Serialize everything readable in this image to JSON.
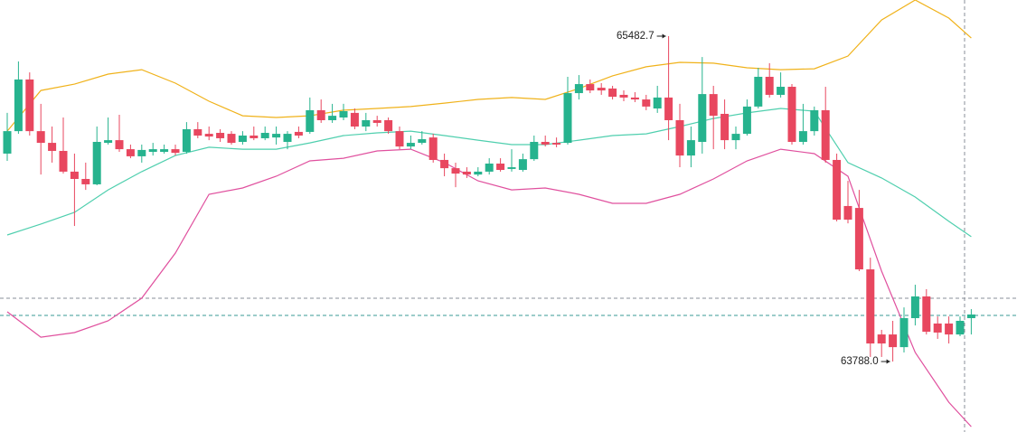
{
  "chart_data": {
    "type": "candlestick",
    "ylim": [
      63421,
      65671
    ],
    "up_color": "#26b38e",
    "down_color": "#e8475f",
    "max_label": "65482.7",
    "min_label": "63788.0",
    "open": [
      64871,
      64988,
      65257,
      64988,
      64927,
      64885,
      64777,
      64739,
      64711,
      64927,
      64941,
      64894,
      64857,
      64880,
      64880,
      64894,
      64880,
      64998,
      64974,
      64979,
      64974,
      64932,
      64965,
      64951,
      64955,
      64932,
      64984,
      64984,
      65097,
      65045,
      65059,
      65083,
      65012,
      65045,
      65045,
      64988,
      64908,
      64927,
      64955,
      64838,
      64795,
      64777,
      64762,
      64777,
      64819,
      64791,
      64786,
      64842,
      64932,
      64927,
      64927,
      65186,
      65233,
      65214,
      65210,
      65177,
      65163,
      65153,
      65106,
      65163,
      65045,
      64861,
      64932,
      65181,
      65078,
      64941,
      64974,
      65116,
      65271,
      65177,
      65219,
      64932,
      64988,
      65097,
      64838,
      64598,
      64588,
      64268,
      63929,
      63929,
      63863,
      64014,
      64127,
      63986,
      63986,
      63929,
      64014
    ],
    "high": [
      65083,
      65351,
      65294,
      65130,
      65012,
      65059,
      64871,
      64824,
      65012,
      65059,
      65073,
      64918,
      64918,
      64927,
      64918,
      64918,
      65035,
      65035,
      65012,
      64998,
      64988,
      64988,
      65012,
      65012,
      65012,
      64988,
      65012,
      65163,
      65153,
      65130,
      65130,
      65106,
      65083,
      65068,
      65059,
      65012,
      64965,
      64988,
      64974,
      64871,
      64824,
      64800,
      64800,
      64847,
      64847,
      64894,
      64871,
      64965,
      64965,
      64955,
      65271,
      65280,
      65257,
      65238,
      65224,
      65200,
      65191,
      65177,
      65224,
      65482.7,
      65130,
      65012,
      65374,
      65224,
      65153,
      65012,
      65153,
      65318,
      65342,
      65294,
      65233,
      65130,
      65116,
      65219,
      64871,
      64729,
      64682,
      64329,
      63953,
      64000,
      64070,
      64188,
      64165,
      64023,
      64023,
      64023,
      64061
    ],
    "low": [
      64833,
      64974,
      64965,
      64762,
      64824,
      64767,
      64494,
      64682,
      64706,
      64918,
      64880,
      64847,
      64824,
      64861,
      64871,
      64861,
      64871,
      64951,
      64941,
      64932,
      64918,
      64918,
      64941,
      64941,
      64918,
      64894,
      64951,
      64974,
      65031,
      65031,
      65045,
      64998,
      64988,
      65012,
      64974,
      64894,
      64894,
      64918,
      64824,
      64753,
      64696,
      64744,
      64753,
      64762,
      64777,
      64777,
      64777,
      64833,
      64908,
      64904,
      64918,
      65153,
      65186,
      65177,
      65153,
      65144,
      65139,
      65097,
      65083,
      64941,
      64800,
      64800,
      64871,
      64894,
      64894,
      64894,
      64965,
      65106,
      65163,
      65163,
      64918,
      64918,
      64965,
      64824,
      64518,
      64508,
      64259,
      63812,
      63812,
      63788.0,
      63835,
      63976,
      63929,
      63906,
      63882,
      63920,
      63929
    ],
    "close": [
      64988,
      65257,
      64988,
      64927,
      64885,
      64777,
      64739,
      64711,
      64932,
      64941,
      64894,
      64857,
      64890,
      64894,
      64894,
      64875,
      64998,
      64965,
      64960,
      64951,
      64927,
      64965,
      64951,
      64979,
      64974,
      64974,
      64965,
      65097,
      65045,
      65068,
      65092,
      65012,
      65045,
      65031,
      64988,
      64908,
      64927,
      64946,
      64838,
      64795,
      64767,
      64762,
      64777,
      64819,
      64786,
      64800,
      64842,
      64932,
      64918,
      64918,
      65186,
      65233,
      65200,
      65200,
      65167,
      65163,
      65153,
      65116,
      65163,
      65045,
      64861,
      64941,
      65181,
      65068,
      64941,
      64974,
      65116,
      65271,
      65177,
      65219,
      64932,
      64988,
      65097,
      64838,
      64527,
      64527,
      64268,
      63882,
      63882,
      63863,
      64014,
      64127,
      63943,
      63939,
      63929,
      64000,
      64033
    ],
    "bands": {
      "x": [
        0,
        3,
        6,
        9,
        12,
        15,
        18,
        21,
        24,
        27,
        30,
        33,
        36,
        39,
        42,
        45,
        48,
        51,
        54,
        57,
        60,
        63,
        66,
        69,
        72,
        75,
        78,
        81,
        84,
        86
      ],
      "series": [
        {
          "color": "#f0b21a",
          "values": [
            64988,
            65200,
            65233,
            65285,
            65308,
            65238,
            65144,
            65068,
            65059,
            65068,
            65097,
            65106,
            65116,
            65134,
            65153,
            65163,
            65153,
            65210,
            65276,
            65323,
            65346,
            65342,
            65318,
            65308,
            65313,
            65379,
            65567,
            65671,
            65577,
            65473
          ]
        },
        {
          "color": "#4fcfae",
          "values": [
            64447,
            64504,
            64565,
            64682,
            64777,
            64861,
            64904,
            64894,
            64894,
            64927,
            64965,
            64979,
            64988,
            64965,
            64941,
            64918,
            64918,
            64941,
            64965,
            64974,
            65012,
            65054,
            65083,
            65106,
            65092,
            64824,
            64744,
            64645,
            64518,
            64438
          ]
        },
        {
          "color": "#e0509e",
          "values": [
            64047,
            63915,
            63939,
            64000,
            64118,
            64353,
            64659,
            64692,
            64753,
            64833,
            64847,
            64885,
            64894,
            64824,
            64729,
            64682,
            64692,
            64659,
            64612,
            64612,
            64659,
            64739,
            64833,
            64894,
            64871,
            64753,
            64259,
            63835,
            63576,
            63449
          ]
        }
      ]
    }
  }
}
